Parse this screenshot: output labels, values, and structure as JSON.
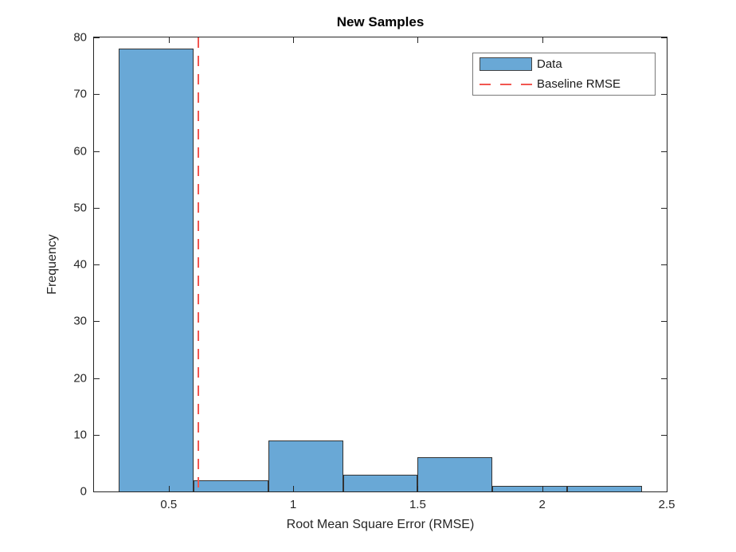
{
  "figure": {
    "title": "New Samples",
    "xlabel": "Root Mean Square Error (RMSE)",
    "ylabel": "Frequency",
    "legend": {
      "items": [
        {
          "label": "Data",
          "marker": "blue-patch"
        },
        {
          "label": "Baseline RMSE",
          "marker": "red-dashed-line"
        }
      ]
    },
    "colors": {
      "bar_fill": "#69A8D6",
      "bar_edge": "#333333",
      "baseline": "#F15650",
      "axis": "#262626",
      "tick_text": "#262626",
      "title_text": "#000000",
      "legend_border": "#787878",
      "background": "#FFFFFF"
    }
  },
  "chart_data": {
    "type": "bar",
    "subtype": "histogram",
    "title": "New Samples",
    "xlabel": "Root Mean Square Error (RMSE)",
    "ylabel": "Frequency",
    "bin_edges": [
      0.3,
      0.6,
      0.9,
      1.2,
      1.5,
      1.8,
      2.1,
      2.4
    ],
    "values": [
      78,
      2,
      9,
      3,
      6,
      1,
      1
    ],
    "baseline_rmse": 0.62,
    "xlim": [
      0.2,
      2.5
    ],
    "ylim": [
      0,
      80
    ],
    "xticks": [
      0.5,
      1,
      1.5,
      2,
      2.5
    ],
    "xtick_labels": [
      "0.5",
      "1",
      "1.5",
      "2",
      "2.5"
    ],
    "yticks": [
      0,
      10,
      20,
      30,
      40,
      50,
      60,
      70,
      80
    ],
    "ytick_labels": [
      "0",
      "10",
      "20",
      "30",
      "40",
      "50",
      "60",
      "70",
      "80"
    ],
    "legend": [
      "Data",
      "Baseline RMSE"
    ],
    "legend_position": "northeast",
    "grid": false
  }
}
